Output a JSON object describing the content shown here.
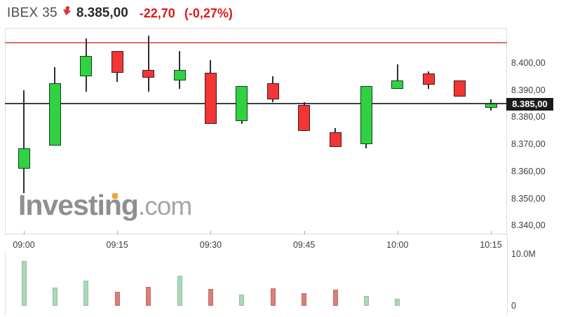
{
  "header": {
    "symbol": "IBEX 35",
    "arrow_icon": "down-arrow-icon",
    "price": "8.385,00",
    "change": "-22,70",
    "change_pct": "(-0,27%)"
  },
  "watermark": {
    "name": "Investing",
    "tld": ".com"
  },
  "colors": {
    "up": "#2fd341",
    "down": "#f23535",
    "up_vol": "#abd8b6",
    "down_vol": "#d98078",
    "up_vol_border": "#8fc09e",
    "down_vol_border": "#c26a62",
    "red_line": "#e36a6a",
    "last_price_line": "#3f3f3f",
    "tag_bg": "#1b1b1b",
    "watermark_orange": "#f2a33c"
  },
  "chart_data": {
    "type": "candlestick",
    "title": "IBEX 35 intraday 5-minute candlestick chart with volume",
    "x": [
      "09:00",
      "09:05",
      "09:10",
      "09:15",
      "09:20",
      "09:25",
      "09:30",
      "09:35",
      "09:40",
      "09:45",
      "09:50",
      "09:55",
      "10:00",
      "10:05",
      "10:10",
      "10:15"
    ],
    "series": [
      {
        "name": "IBEX 35",
        "ohlc": [
          [
            8361.0,
            8390.0,
            8352.0,
            8368.5
          ],
          [
            8369.5,
            8398.5,
            8369.5,
            8392.5
          ],
          [
            8395.0,
            8409.0,
            8389.5,
            8402.5
          ],
          [
            8404.5,
            8404.5,
            8393.0,
            8396.5
          ],
          [
            8397.5,
            8410.0,
            8389.5,
            8394.5
          ],
          [
            8393.5,
            8404.5,
            8390.5,
            8397.5
          ],
          [
            8396.5,
            8401.0,
            8377.5,
            8377.5
          ],
          [
            8378.5,
            8391.5,
            8377.5,
            8391.5
          ],
          [
            8392.5,
            8395.0,
            8385.5,
            8386.5
          ],
          [
            8384.5,
            8385.5,
            8375.0,
            8375.0
          ],
          [
            8374.5,
            8376.0,
            8369.0,
            8369.0
          ],
          [
            8370.0,
            8391.5,
            8368.5,
            8391.5
          ],
          [
            8390.5,
            8399.5,
            8390.5,
            8393.5
          ],
          [
            8396.0,
            8397.0,
            8390.5,
            8392.0
          ],
          [
            8393.5,
            8393.5,
            8387.5,
            8387.5
          ],
          [
            8383.5,
            8386.5,
            8382.5,
            8385.0
          ]
        ]
      }
    ],
    "volume_series": {
      "name": "Volume",
      "unit": "M",
      "values": [
        8.6,
        3.5,
        4.9,
        2.7,
        3.6,
        5.8,
        3.2,
        2.2,
        3.4,
        2.4,
        3.1,
        1.9,
        1.4,
        0,
        0,
        0
      ]
    },
    "y_axis": {
      "ticks": [
        "8.400,00",
        "8.390,00",
        "8.380,00",
        "8.370,00",
        "8.360,00",
        "8.350,00",
        "8.340,00"
      ],
      "tick_values": [
        8400,
        8390,
        8380,
        8370,
        8360,
        8350,
        8340
      ],
      "range_top": 8413,
      "range_bottom": 8337
    },
    "x_axis": {
      "labels": [
        "09:00",
        "09:15",
        "09:30",
        "09:45",
        "10:00",
        "10:15"
      ],
      "label_indices": [
        0,
        3,
        6,
        9,
        12,
        15
      ]
    },
    "vol_axis": {
      "labels": [
        "10.0M",
        "0"
      ],
      "label_values": [
        10,
        0
      ]
    },
    "hlines": [
      {
        "name": "upper-red-line",
        "value": 8407.5,
        "color_key": "red_line"
      },
      {
        "name": "last-price-line",
        "value": 8385.0,
        "color_key": "last_price_line"
      }
    ],
    "last_price_label": "8.385,00",
    "grid": false,
    "legend": false
  }
}
